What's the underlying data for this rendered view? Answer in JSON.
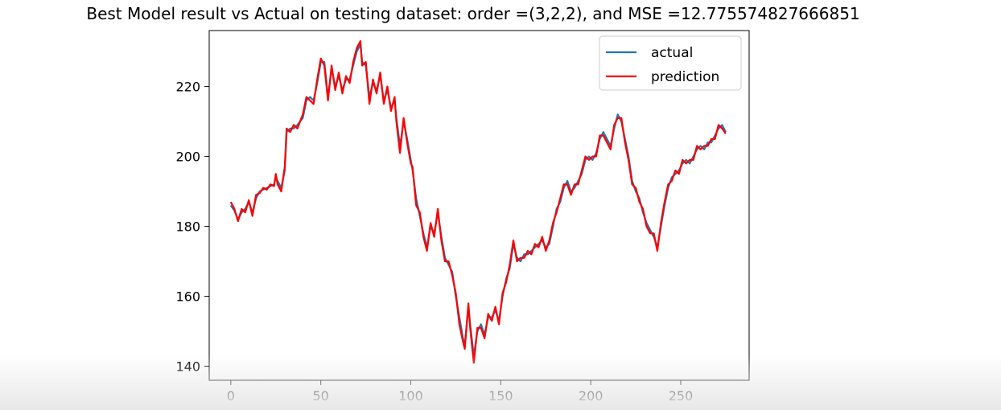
{
  "chart_data": {
    "type": "line",
    "title": "Best Model result vs Actual on testing dataset: order =(3,2,2), and MSE =12.775574827666851",
    "xlabel": "",
    "ylabel": "",
    "xlim": [
      -12,
      288
    ],
    "ylim": [
      136,
      236
    ],
    "xticks": [
      0,
      50,
      100,
      150,
      200,
      250
    ],
    "yticks": [
      140,
      160,
      180,
      200,
      220
    ],
    "grid": false,
    "legend": "top-right",
    "series": [
      {
        "name": "actual",
        "color": "#1f77b4",
        "points": [
          [
            0,
            186
          ],
          [
            2,
            184.5
          ],
          [
            4,
            182
          ],
          [
            6,
            184
          ],
          [
            8,
            185
          ],
          [
            10,
            187
          ],
          [
            12,
            184
          ],
          [
            14,
            188
          ],
          [
            16,
            190
          ],
          [
            18,
            190.5
          ],
          [
            20,
            191
          ],
          [
            22,
            191.5
          ],
          [
            24,
            192
          ],
          [
            25,
            194
          ],
          [
            26,
            193
          ],
          [
            28,
            191
          ],
          [
            30,
            196
          ],
          [
            31,
            207
          ],
          [
            33,
            208
          ],
          [
            35,
            208
          ],
          [
            37,
            209
          ],
          [
            40,
            211
          ],
          [
            42,
            216
          ],
          [
            44,
            217
          ],
          [
            46,
            216
          ],
          [
            48,
            221
          ],
          [
            50,
            227
          ],
          [
            52,
            227
          ],
          [
            54,
            217
          ],
          [
            56,
            225
          ],
          [
            58,
            220
          ],
          [
            60,
            223
          ],
          [
            62,
            219
          ],
          [
            64,
            222
          ],
          [
            66,
            222
          ],
          [
            68,
            226
          ],
          [
            70,
            230
          ],
          [
            72,
            232
          ],
          [
            73,
            227
          ],
          [
            75,
            226
          ],
          [
            77,
            217
          ],
          [
            79,
            221
          ],
          [
            81,
            219
          ],
          [
            83,
            223
          ],
          [
            85,
            216
          ],
          [
            87,
            219
          ],
          [
            89,
            214
          ],
          [
            91,
            216
          ],
          [
            92,
            211
          ],
          [
            94,
            203
          ],
          [
            96,
            210
          ],
          [
            98,
            205
          ],
          [
            100,
            199
          ],
          [
            101,
            196
          ],
          [
            103,
            188
          ],
          [
            105,
            183
          ],
          [
            107,
            178
          ],
          [
            109,
            174
          ],
          [
            111,
            180
          ],
          [
            113,
            178
          ],
          [
            115,
            184
          ],
          [
            117,
            177
          ],
          [
            119,
            171
          ],
          [
            121,
            169
          ],
          [
            123,
            167
          ],
          [
            125,
            160
          ],
          [
            127,
            154
          ],
          [
            129,
            148
          ],
          [
            130,
            146
          ],
          [
            132,
            157
          ],
          [
            133,
            152
          ],
          [
            135,
            143
          ],
          [
            137,
            150
          ],
          [
            139,
            152
          ],
          [
            141,
            149
          ],
          [
            143,
            154
          ],
          [
            145,
            154
          ],
          [
            147,
            156
          ],
          [
            149,
            153
          ],
          [
            151,
            160
          ],
          [
            153,
            165
          ],
          [
            155,
            168
          ],
          [
            157,
            175
          ],
          [
            159,
            171
          ],
          [
            161,
            170
          ],
          [
            163,
            172
          ],
          [
            165,
            172
          ],
          [
            167,
            173
          ],
          [
            169,
            174
          ],
          [
            171,
            175
          ],
          [
            173,
            176
          ],
          [
            175,
            174
          ],
          [
            177,
            175
          ],
          [
            179,
            180
          ],
          [
            181,
            185
          ],
          [
            183,
            187
          ],
          [
            185,
            191
          ],
          [
            187,
            193
          ],
          [
            189,
            190
          ],
          [
            191,
            191
          ],
          [
            193,
            193
          ],
          [
            195,
            195
          ],
          [
            197,
            199
          ],
          [
            199,
            200
          ],
          [
            201,
            199
          ],
          [
            203,
            201
          ],
          [
            205,
            205
          ],
          [
            207,
            207
          ],
          [
            209,
            205
          ],
          [
            211,
            203
          ],
          [
            213,
            208
          ],
          [
            215,
            212
          ],
          [
            217,
            210
          ],
          [
            219,
            205
          ],
          [
            221,
            200
          ],
          [
            223,
            193
          ],
          [
            225,
            190
          ],
          [
            227,
            188
          ],
          [
            229,
            184
          ],
          [
            231,
            181
          ],
          [
            233,
            179
          ],
          [
            235,
            177
          ],
          [
            237,
            174
          ],
          [
            239,
            180
          ],
          [
            241,
            186
          ],
          [
            243,
            191
          ],
          [
            245,
            194
          ],
          [
            247,
            195
          ],
          [
            249,
            196
          ],
          [
            251,
            198
          ],
          [
            253,
            199
          ],
          [
            255,
            198
          ],
          [
            257,
            200
          ],
          [
            259,
            202
          ],
          [
            261,
            203
          ],
          [
            263,
            202
          ],
          [
            265,
            204
          ],
          [
            267,
            204
          ],
          [
            269,
            206
          ],
          [
            271,
            208
          ],
          [
            273,
            209
          ],
          [
            275,
            207
          ]
        ]
      },
      {
        "name": "prediction",
        "color": "#ff0000",
        "points": [
          [
            0,
            187
          ],
          [
            2,
            185
          ],
          [
            4,
            181.5
          ],
          [
            6,
            185
          ],
          [
            8,
            184
          ],
          [
            10,
            187.5
          ],
          [
            12,
            183
          ],
          [
            14,
            189
          ],
          [
            16,
            189.5
          ],
          [
            18,
            191
          ],
          [
            20,
            190.5
          ],
          [
            22,
            192
          ],
          [
            24,
            191.5
          ],
          [
            25,
            195
          ],
          [
            26,
            192
          ],
          [
            28,
            190
          ],
          [
            30,
            197
          ],
          [
            31,
            208
          ],
          [
            33,
            207
          ],
          [
            35,
            209
          ],
          [
            37,
            208
          ],
          [
            40,
            212
          ],
          [
            42,
            217
          ],
          [
            44,
            216
          ],
          [
            46,
            215
          ],
          [
            48,
            222
          ],
          [
            50,
            228
          ],
          [
            52,
            226
          ],
          [
            54,
            216
          ],
          [
            56,
            226
          ],
          [
            58,
            219
          ],
          [
            60,
            224
          ],
          [
            62,
            218
          ],
          [
            64,
            223
          ],
          [
            66,
            221
          ],
          [
            68,
            227
          ],
          [
            70,
            231
          ],
          [
            72,
            233
          ],
          [
            73,
            226
          ],
          [
            75,
            227
          ],
          [
            77,
            215
          ],
          [
            79,
            222
          ],
          [
            81,
            218
          ],
          [
            83,
            224
          ],
          [
            85,
            215
          ],
          [
            87,
            220
          ],
          [
            89,
            213
          ],
          [
            91,
            217
          ],
          [
            92,
            210
          ],
          [
            94,
            201
          ],
          [
            96,
            211
          ],
          [
            98,
            204
          ],
          [
            100,
            198
          ],
          [
            101,
            197
          ],
          [
            103,
            186
          ],
          [
            105,
            184
          ],
          [
            107,
            177
          ],
          [
            109,
            173
          ],
          [
            111,
            181
          ],
          [
            113,
            177
          ],
          [
            115,
            185
          ],
          [
            117,
            176
          ],
          [
            119,
            170
          ],
          [
            121,
            170
          ],
          [
            123,
            166
          ],
          [
            125,
            161
          ],
          [
            127,
            152
          ],
          [
            129,
            147
          ],
          [
            130,
            145
          ],
          [
            132,
            158
          ],
          [
            133,
            151
          ],
          [
            135,
            141
          ],
          [
            137,
            151
          ],
          [
            139,
            151
          ],
          [
            141,
            148
          ],
          [
            143,
            155
          ],
          [
            145,
            153
          ],
          [
            147,
            157
          ],
          [
            149,
            152
          ],
          [
            151,
            161
          ],
          [
            153,
            164
          ],
          [
            155,
            169
          ],
          [
            157,
            176
          ],
          [
            159,
            170
          ],
          [
            161,
            171
          ],
          [
            163,
            171
          ],
          [
            165,
            173
          ],
          [
            167,
            172
          ],
          [
            169,
            175
          ],
          [
            171,
            174
          ],
          [
            173,
            177
          ],
          [
            175,
            173
          ],
          [
            177,
            176
          ],
          [
            179,
            181
          ],
          [
            181,
            184
          ],
          [
            183,
            188
          ],
          [
            185,
            192
          ],
          [
            187,
            192
          ],
          [
            189,
            189
          ],
          [
            191,
            192
          ],
          [
            193,
            192
          ],
          [
            195,
            196
          ],
          [
            197,
            200
          ],
          [
            199,
            199
          ],
          [
            201,
            200
          ],
          [
            203,
            200
          ],
          [
            205,
            206
          ],
          [
            207,
            206
          ],
          [
            209,
            204
          ],
          [
            211,
            202
          ],
          [
            213,
            209
          ],
          [
            215,
            211
          ],
          [
            217,
            211
          ],
          [
            219,
            204
          ],
          [
            221,
            199
          ],
          [
            223,
            192
          ],
          [
            225,
            191
          ],
          [
            227,
            187
          ],
          [
            229,
            185
          ],
          [
            231,
            180
          ],
          [
            233,
            178
          ],
          [
            235,
            178
          ],
          [
            237,
            173
          ],
          [
            239,
            181
          ],
          [
            241,
            187
          ],
          [
            243,
            192
          ],
          [
            245,
            193
          ],
          [
            247,
            196
          ],
          [
            249,
            195
          ],
          [
            251,
            199
          ],
          [
            253,
            198
          ],
          [
            255,
            199
          ],
          [
            257,
            199
          ],
          [
            259,
            203
          ],
          [
            261,
            202
          ],
          [
            263,
            203
          ],
          [
            265,
            203
          ],
          [
            267,
            205
          ],
          [
            269,
            205
          ],
          [
            271,
            209
          ],
          [
            273,
            208
          ],
          [
            275,
            206.5
          ]
        ]
      }
    ]
  }
}
